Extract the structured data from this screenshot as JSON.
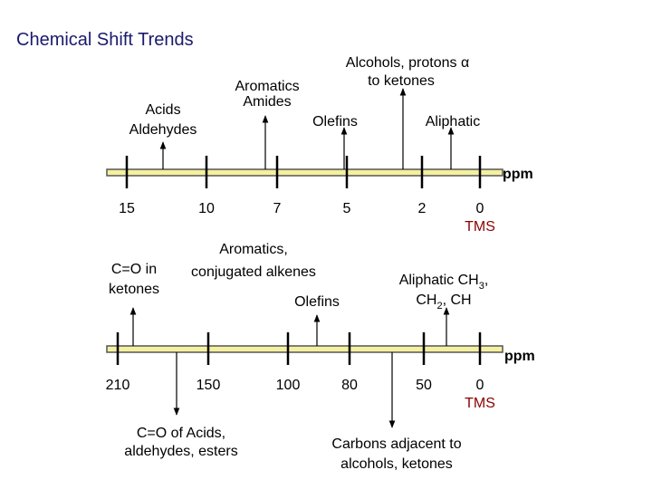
{
  "title": "Chemical Shift Trends",
  "scales": [
    {
      "ticks": [
        15,
        10,
        7,
        5,
        2,
        0
      ],
      "zero_label": "TMS",
      "unit": "ppm",
      "labels": {
        "acids": [
          "Acids",
          "Aldehydes"
        ],
        "aromatics": [
          "Aromatics",
          "Amides"
        ],
        "olefins": [
          "Olefins"
        ],
        "alcohols": [
          "Alcohols, protons α",
          "to ketones"
        ],
        "aliphatic": [
          "Aliphatic"
        ]
      }
    },
    {
      "ticks": [
        210,
        150,
        100,
        80,
        50,
        0
      ],
      "zero_label": "TMS",
      "unit": "ppm",
      "labels": {
        "ketones": [
          "C=O in",
          "ketones"
        ],
        "aromatics": [
          "Aromatics,",
          "conjugated alkenes"
        ],
        "olefins": [
          "Olefins"
        ],
        "aliphatic": [
          "Aliphatic CH",
          "3",
          ",",
          "CH",
          "2",
          ", CH"
        ],
        "acids": [
          "C=O of Acids,",
          "aldehydes, esters"
        ],
        "carbons": [
          "Carbons adjacent to",
          "alcohols, ketones"
        ]
      }
    }
  ]
}
